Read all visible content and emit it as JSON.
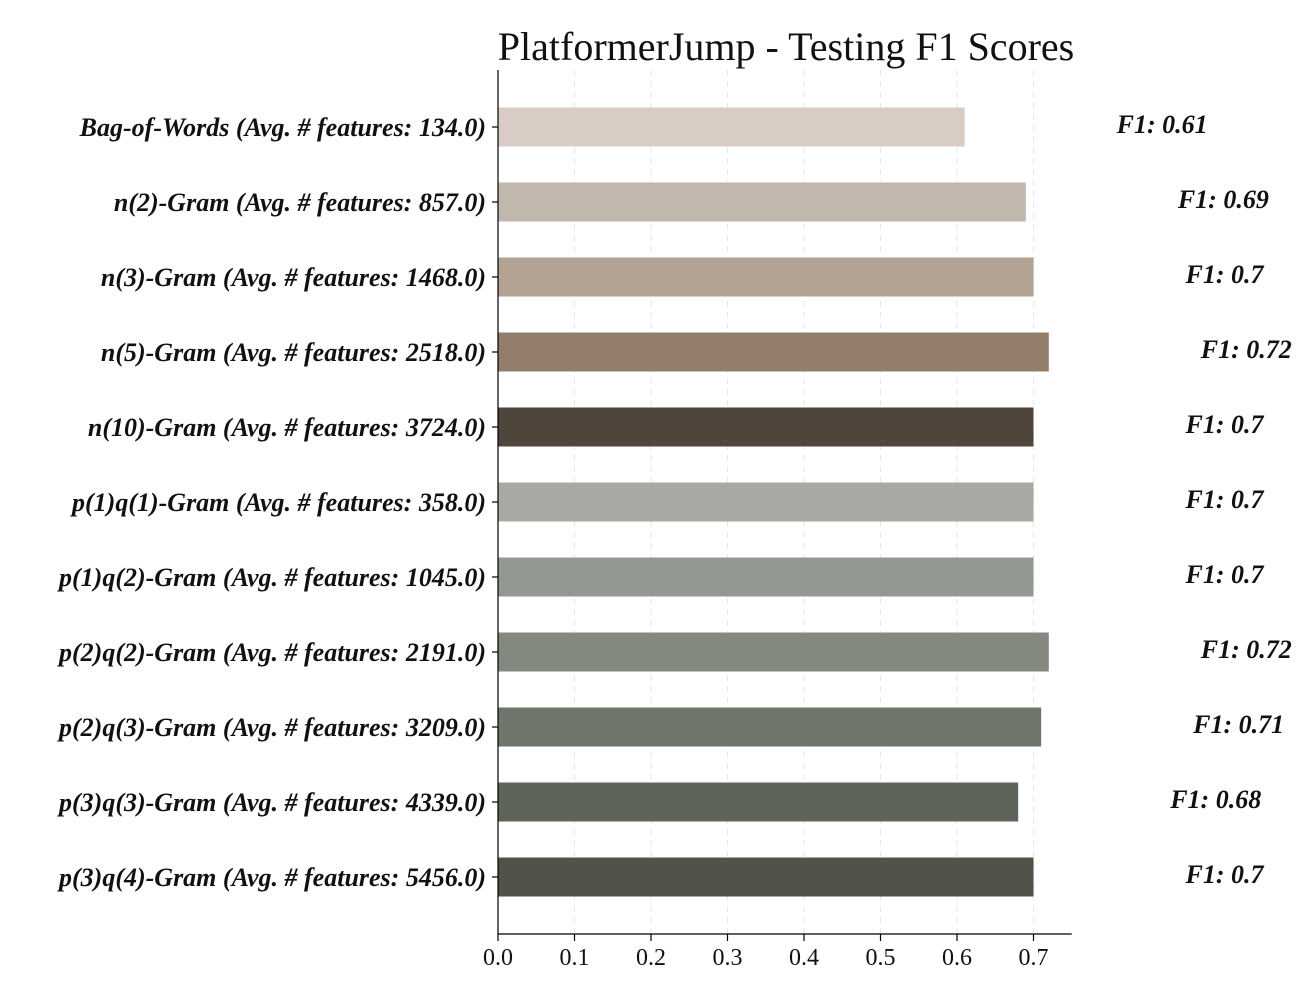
{
  "chart_data": {
    "type": "bar",
    "orientation": "horizontal",
    "title": "PlatformerJump - Testing F1 Scores",
    "xlabel": "",
    "ylabel": "",
    "xlim": [
      0,
      0.75
    ],
    "x_ticks": [
      "0.0",
      "0.1",
      "0.2",
      "0.3",
      "0.4",
      "0.5",
      "0.6",
      "0.7"
    ],
    "grid": "vertical dashed",
    "categories": [
      "Bag-of-Words (Avg. # features: 134.0)",
      "n(2)-Gram (Avg. # features: 857.0)",
      "n(3)-Gram (Avg. # features: 1468.0)",
      "n(5)-Gram (Avg. # features: 2518.0)",
      "n(10)-Gram (Avg. # features: 3724.0)",
      "p(1)q(1)-Gram (Avg. # features: 358.0)",
      "p(1)q(2)-Gram (Avg. # features: 1045.0)",
      "p(2)q(2)-Gram (Avg. # features: 2191.0)",
      "p(2)q(3)-Gram (Avg. # features: 3209.0)",
      "p(3)q(3)-Gram (Avg. # features: 4339.0)",
      "p(3)q(4)-Gram (Avg. # features: 5456.0)"
    ],
    "values": [
      0.61,
      0.69,
      0.7,
      0.72,
      0.7,
      0.7,
      0.7,
      0.72,
      0.71,
      0.68,
      0.7
    ],
    "value_labels": [
      "F1: 0.61",
      "F1: 0.69",
      "F1: 0.7",
      "F1: 0.72",
      "F1: 0.7",
      "F1: 0.7",
      "F1: 0.7",
      "F1: 0.72",
      "F1: 0.71",
      "F1: 0.68",
      "F1: 0.7"
    ],
    "colors": [
      "#d9ccc4",
      "#c2b7ad",
      "#b2a395",
      "#937d6b",
      "#4f453b",
      "#a7aaa2",
      "#939890",
      "#84897f",
      "#71766c",
      "#5f645b",
      "#50534a"
    ]
  }
}
